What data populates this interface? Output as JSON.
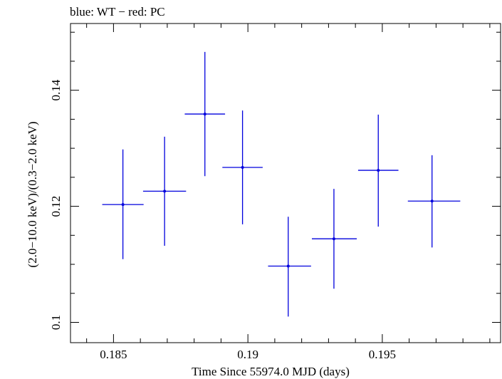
{
  "chart_data": {
    "type": "scatter",
    "title": "blue: WT − red: PC",
    "xlabel": "Time Since 55974.0 MJD (days)",
    "ylabel": "(2.0−10.0 keV)/(0.3−2.0 keV)",
    "xlim": [
      0.1834,
      0.1994
    ],
    "ylim": [
      0.0965,
      0.1515
    ],
    "x_ticks": [
      0.185,
      0.19,
      0.195
    ],
    "x_tick_labels": [
      "0.185",
      "0.19",
      "0.195"
    ],
    "y_ticks": [
      0.1,
      0.12,
      0.14
    ],
    "y_tick_labels": [
      "0.1",
      "0.12",
      "0.14"
    ],
    "series": [
      {
        "color": "#0000dd",
        "points": [
          {
            "x": 0.18535,
            "y": 0.1203,
            "x_lo": 0.18458,
            "x_hi": 0.18612,
            "y_lo": 0.1109,
            "y_hi": 0.1298
          },
          {
            "x": 0.1869,
            "y": 0.1226,
            "x_lo": 0.1861,
            "x_hi": 0.1877,
            "y_lo": 0.1132,
            "y_hi": 0.132
          },
          {
            "x": 0.1884,
            "y": 0.1359,
            "x_lo": 0.18765,
            "x_hi": 0.18915,
            "y_lo": 0.1252,
            "y_hi": 0.1466
          },
          {
            "x": 0.1898,
            "y": 0.1267,
            "x_lo": 0.18905,
            "x_hi": 0.19055,
            "y_lo": 0.1169,
            "y_hi": 0.1365
          },
          {
            "x": 0.1915,
            "y": 0.1097,
            "x_lo": 0.19075,
            "x_hi": 0.19235,
            "y_lo": 0.101,
            "y_hi": 0.1182
          },
          {
            "x": 0.1932,
            "y": 0.1144,
            "x_lo": 0.19238,
            "x_hi": 0.19405,
            "y_lo": 0.1058,
            "y_hi": 0.123
          },
          {
            "x": 0.19485,
            "y": 0.1262,
            "x_lo": 0.1941,
            "x_hi": 0.1956,
            "y_lo": 0.1165,
            "y_hi": 0.1358
          },
          {
            "x": 0.19685,
            "y": 0.1209,
            "x_lo": 0.19595,
            "x_hi": 0.1979,
            "y_lo": 0.1129,
            "y_hi": 0.1288
          }
        ]
      }
    ]
  }
}
